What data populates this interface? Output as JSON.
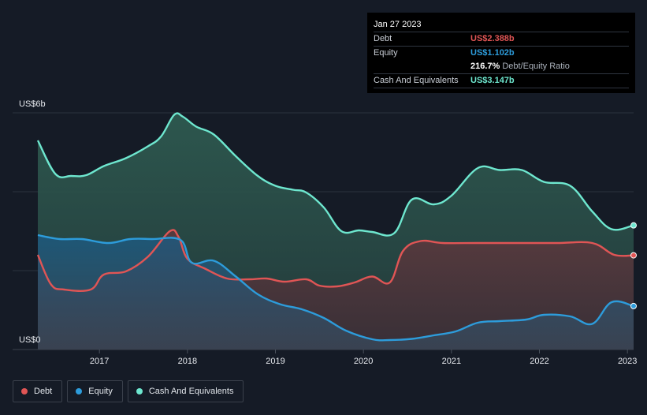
{
  "tooltip": {
    "date": "Jan 27 2023",
    "debt_label": "Debt",
    "debt_value": "US$2.388b",
    "equity_label": "Equity",
    "equity_value": "US$1.102b",
    "ratio_value": "216.7%",
    "ratio_label": "Debt/Equity Ratio",
    "cash_label": "Cash And Equivalents",
    "cash_value": "US$3.147b"
  },
  "legend": {
    "debt": "Debt",
    "equity": "Equity",
    "cash": "Cash And Equivalents"
  },
  "colors": {
    "debt": "#e05555",
    "equity": "#2d9cdb",
    "cash": "#6ee7cf",
    "background": "#151b26"
  },
  "chart_data": {
    "type": "area",
    "y_top_label": "US$6b",
    "y_bottom_label": "US$0",
    "ylim": [
      0,
      6
    ],
    "xlim": [
      2016.3,
      2023.07
    ],
    "x_ticks": [
      {
        "value": 2017,
        "label": "2017"
      },
      {
        "value": 2018,
        "label": "2018"
      },
      {
        "value": 2019,
        "label": "2019"
      },
      {
        "value": 2020,
        "label": "2020"
      },
      {
        "value": 2021,
        "label": "2021"
      },
      {
        "value": 2022,
        "label": "2022"
      },
      {
        "value": 2023,
        "label": "2023"
      }
    ],
    "series": [
      {
        "name": "Cash And Equivalents",
        "key": "cash",
        "points": [
          [
            2016.3,
            5.3
          ],
          [
            2016.5,
            4.45
          ],
          [
            2016.68,
            4.4
          ],
          [
            2016.85,
            4.42
          ],
          [
            2017.05,
            4.65
          ],
          [
            2017.3,
            4.85
          ],
          [
            2017.55,
            5.15
          ],
          [
            2017.7,
            5.4
          ],
          [
            2017.85,
            5.95
          ],
          [
            2017.95,
            5.9
          ],
          [
            2018.1,
            5.65
          ],
          [
            2018.3,
            5.45
          ],
          [
            2018.55,
            4.9
          ],
          [
            2018.8,
            4.4
          ],
          [
            2019.0,
            4.15
          ],
          [
            2019.2,
            4.05
          ],
          [
            2019.35,
            3.98
          ],
          [
            2019.55,
            3.6
          ],
          [
            2019.75,
            3.0
          ],
          [
            2019.95,
            3.02
          ],
          [
            2020.1,
            2.98
          ],
          [
            2020.35,
            2.95
          ],
          [
            2020.55,
            3.8
          ],
          [
            2020.8,
            3.68
          ],
          [
            2021.0,
            3.9
          ],
          [
            2021.3,
            4.6
          ],
          [
            2021.55,
            4.55
          ],
          [
            2021.8,
            4.55
          ],
          [
            2022.05,
            4.25
          ],
          [
            2022.35,
            4.15
          ],
          [
            2022.6,
            3.5
          ],
          [
            2022.82,
            3.05
          ],
          [
            2023.07,
            3.147
          ]
        ]
      },
      {
        "name": "Debt",
        "key": "debt",
        "points": [
          [
            2016.3,
            2.4
          ],
          [
            2016.45,
            1.65
          ],
          [
            2016.6,
            1.52
          ],
          [
            2016.9,
            1.52
          ],
          [
            2017.05,
            1.9
          ],
          [
            2017.3,
            1.98
          ],
          [
            2017.55,
            2.35
          ],
          [
            2017.8,
            3.0
          ],
          [
            2017.9,
            2.85
          ],
          [
            2018.0,
            2.3
          ],
          [
            2018.2,
            2.05
          ],
          [
            2018.45,
            1.8
          ],
          [
            2018.7,
            1.78
          ],
          [
            2018.9,
            1.8
          ],
          [
            2019.1,
            1.72
          ],
          [
            2019.35,
            1.78
          ],
          [
            2019.5,
            1.62
          ],
          [
            2019.7,
            1.6
          ],
          [
            2019.9,
            1.7
          ],
          [
            2020.1,
            1.85
          ],
          [
            2020.3,
            1.7
          ],
          [
            2020.45,
            2.5
          ],
          [
            2020.65,
            2.75
          ],
          [
            2020.9,
            2.7
          ],
          [
            2021.3,
            2.7
          ],
          [
            2021.8,
            2.7
          ],
          [
            2022.2,
            2.7
          ],
          [
            2022.6,
            2.7
          ],
          [
            2022.85,
            2.4
          ],
          [
            2023.07,
            2.388
          ]
        ]
      },
      {
        "name": "Equity",
        "key": "equity",
        "points": [
          [
            2016.3,
            2.9
          ],
          [
            2016.55,
            2.8
          ],
          [
            2016.8,
            2.8
          ],
          [
            2017.1,
            2.7
          ],
          [
            2017.35,
            2.8
          ],
          [
            2017.6,
            2.8
          ],
          [
            2017.92,
            2.78
          ],
          [
            2018.05,
            2.2
          ],
          [
            2018.3,
            2.25
          ],
          [
            2018.55,
            1.85
          ],
          [
            2018.8,
            1.4
          ],
          [
            2019.05,
            1.15
          ],
          [
            2019.3,
            1.02
          ],
          [
            2019.55,
            0.8
          ],
          [
            2019.8,
            0.48
          ],
          [
            2020.1,
            0.26
          ],
          [
            2020.3,
            0.24
          ],
          [
            2020.55,
            0.27
          ],
          [
            2020.8,
            0.36
          ],
          [
            2021.05,
            0.46
          ],
          [
            2021.3,
            0.68
          ],
          [
            2021.55,
            0.72
          ],
          [
            2021.85,
            0.76
          ],
          [
            2022.05,
            0.88
          ],
          [
            2022.35,
            0.84
          ],
          [
            2022.6,
            0.65
          ],
          [
            2022.82,
            1.2
          ],
          [
            2023.07,
            1.102
          ]
        ]
      }
    ]
  }
}
